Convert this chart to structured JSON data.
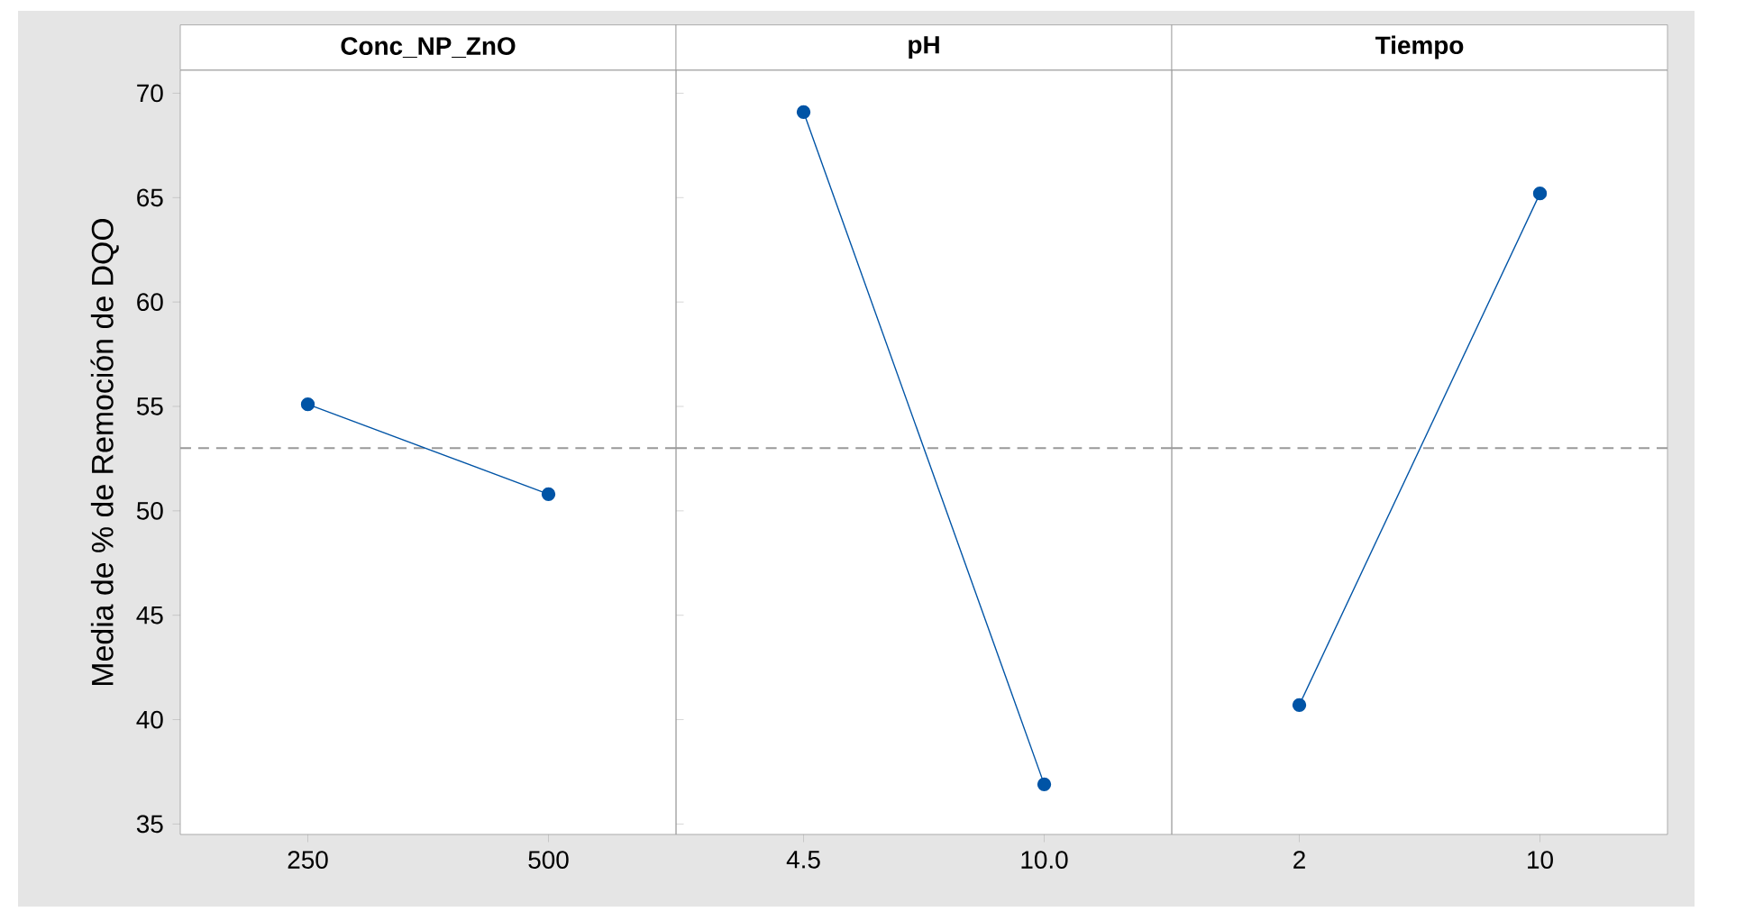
{
  "chart_data": [
    {
      "type": "line",
      "title": "Conc_NP_ZnO",
      "ylabel": "Media de % de Remoción de DQO",
      "categories": [
        "250",
        "500"
      ],
      "series": [
        {
          "color": "#0054a6",
          "values": [
            55.1,
            50.8
          ]
        }
      ],
      "ylim": [
        34.5,
        71.1
      ],
      "yticks": [
        35,
        40,
        45,
        50,
        55,
        60,
        65,
        70
      ],
      "ref_lines": [
        {
          "axis": "y",
          "value": 53.0,
          "color": "#999999",
          "line_style": "dashed"
        }
      ],
      "marker": "circle",
      "line_style": "solid"
    },
    {
      "type": "line",
      "title": "pH",
      "categories": [
        "4.5",
        "10.0"
      ],
      "series": [
        {
          "color": "#0054a6",
          "values": [
            69.1,
            36.9
          ]
        }
      ],
      "ylim": [
        34.5,
        71.1
      ],
      "yticks": [
        35,
        40,
        45,
        50,
        55,
        60,
        65,
        70
      ],
      "tick_labels": "x",
      "ref_lines": [
        {
          "axis": "y",
          "value": 53.0,
          "color": "#999999",
          "line_style": "dashed"
        }
      ],
      "marker": "circle",
      "line_style": "solid"
    },
    {
      "type": "line",
      "title": "Tiempo",
      "categories": [
        "2",
        "10"
      ],
      "series": [
        {
          "color": "#0054a6",
          "values": [
            40.7,
            65.2
          ]
        }
      ],
      "ylim": [
        34.5,
        71.1
      ],
      "yticks": [
        35,
        40,
        45,
        50,
        55,
        60,
        65,
        70
      ],
      "tick_labels": "x",
      "ref_lines": [
        {
          "axis": "y",
          "value": 53.0,
          "color": "#999999",
          "line_style": "dashed"
        }
      ],
      "marker": "circle",
      "line_style": "solid"
    }
  ]
}
